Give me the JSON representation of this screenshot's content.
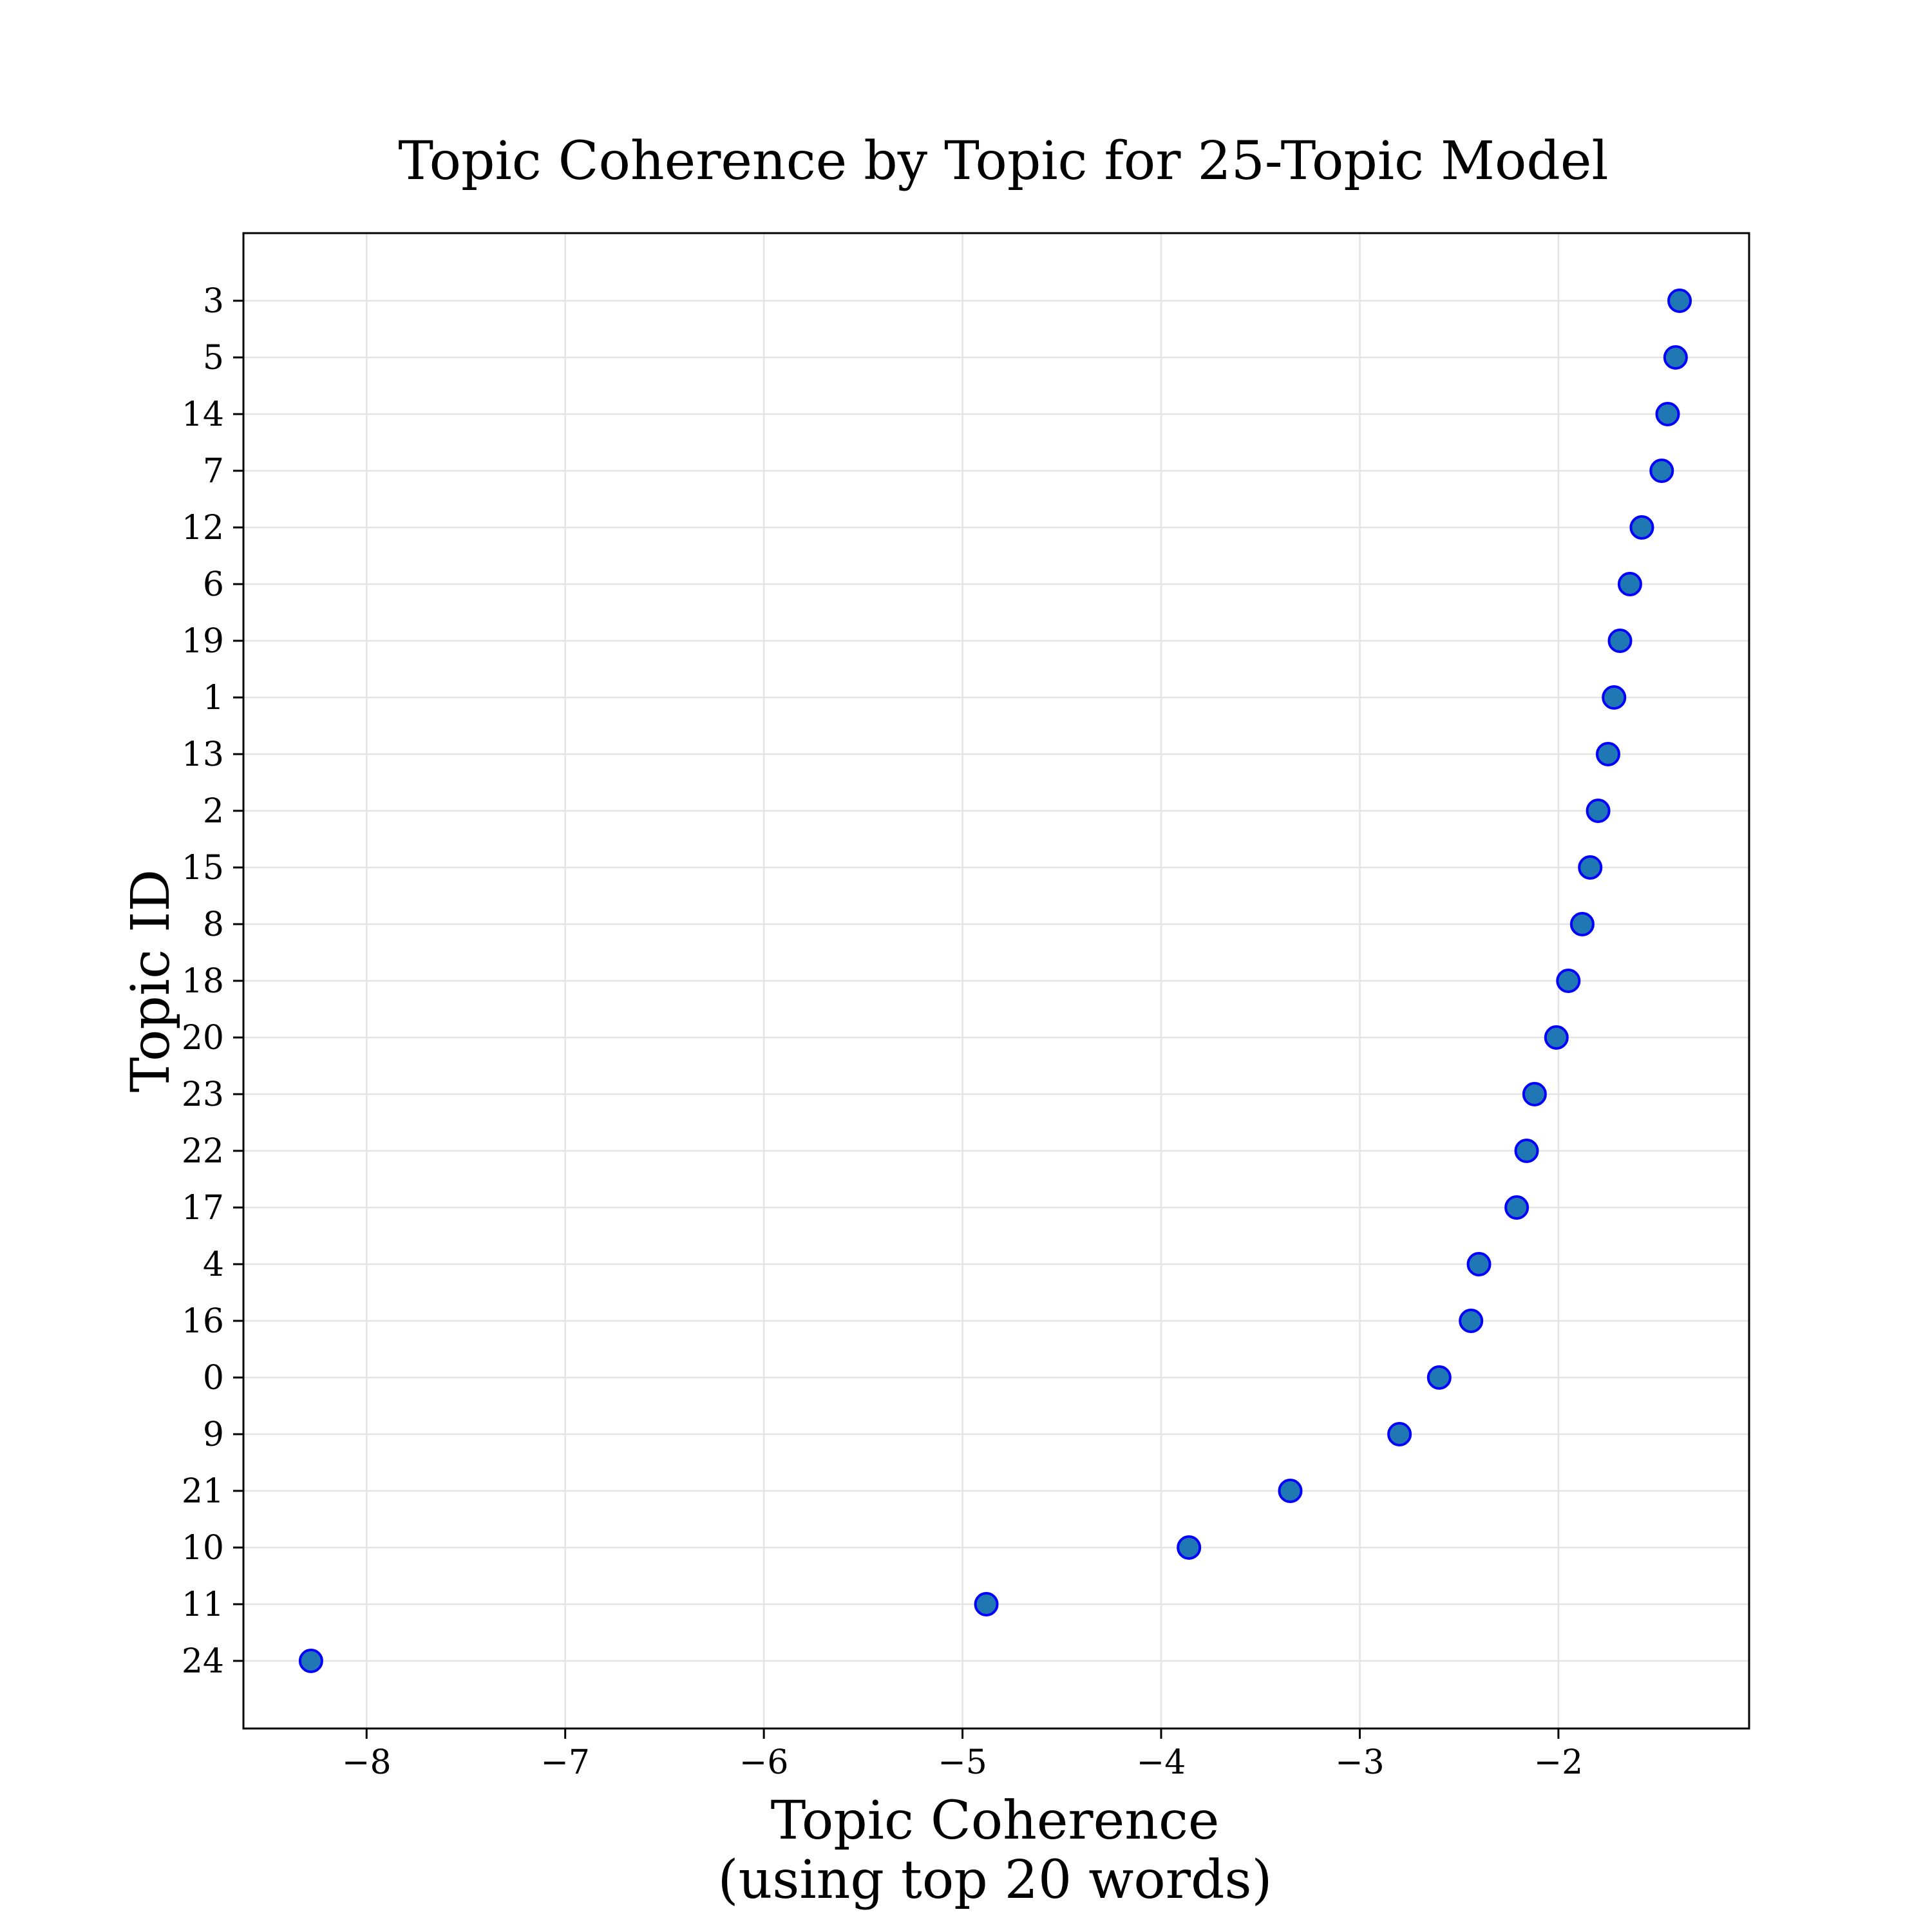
{
  "chart_data": {
    "type": "scatter",
    "title": "Topic Coherence by Topic for 25-Topic Model",
    "xlabel": "Topic Coherence",
    "xlabel_line2": "(using top 20 words)",
    "ylabel": "Topic ID",
    "xlim": [
      -8.62,
      -1.04
    ],
    "xticks": [
      -8,
      -7,
      -6,
      -5,
      -4,
      -3,
      -2
    ],
    "xtick_labels": [
      "−8",
      "−7",
      "−6",
      "−5",
      "−4",
      "−3",
      "−2"
    ],
    "grid": true,
    "legend": "none",
    "marker_fill": "#1f77b4",
    "marker_edge": "#0000ff",
    "points": [
      {
        "topic": "3",
        "value": -1.39
      },
      {
        "topic": "5",
        "value": -1.41
      },
      {
        "topic": "14",
        "value": -1.45
      },
      {
        "topic": "7",
        "value": -1.48
      },
      {
        "topic": "12",
        "value": -1.58
      },
      {
        "topic": "6",
        "value": -1.64
      },
      {
        "topic": "19",
        "value": -1.69
      },
      {
        "topic": "1",
        "value": -1.72
      },
      {
        "topic": "13",
        "value": -1.75
      },
      {
        "topic": "2",
        "value": -1.8
      },
      {
        "topic": "15",
        "value": -1.84
      },
      {
        "topic": "8",
        "value": -1.88
      },
      {
        "topic": "18",
        "value": -1.95
      },
      {
        "topic": "20",
        "value": -2.01
      },
      {
        "topic": "23",
        "value": -2.12
      },
      {
        "topic": "22",
        "value": -2.16
      },
      {
        "topic": "17",
        "value": -2.21
      },
      {
        "topic": "4",
        "value": -2.4
      },
      {
        "topic": "16",
        "value": -2.44
      },
      {
        "topic": "0",
        "value": -2.6
      },
      {
        "topic": "9",
        "value": -2.8
      },
      {
        "topic": "21",
        "value": -3.35
      },
      {
        "topic": "10",
        "value": -3.86
      },
      {
        "topic": "11",
        "value": -4.88
      },
      {
        "topic": "24",
        "value": -8.28
      }
    ]
  }
}
